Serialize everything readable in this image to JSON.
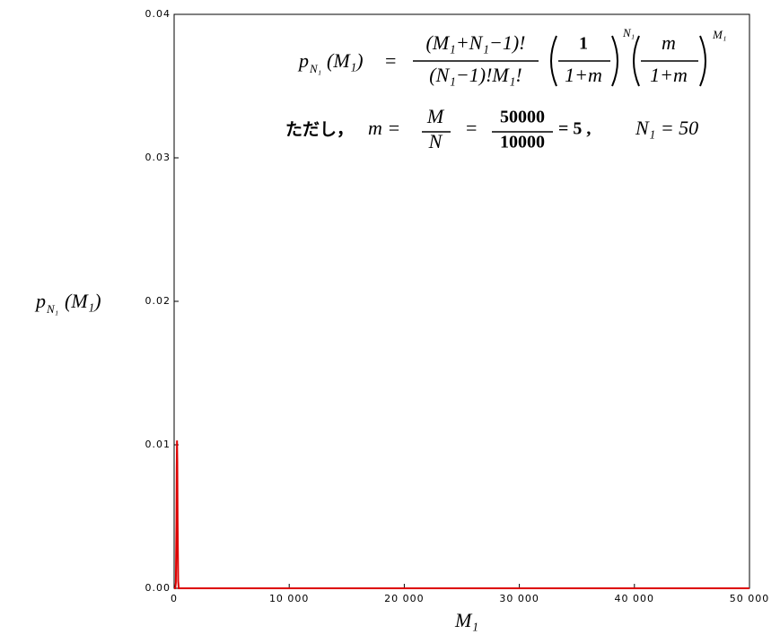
{
  "chart_data": {
    "type": "line",
    "x": [
      0,
      100,
      150,
      200,
      225,
      250,
      275,
      300,
      350,
      400,
      500,
      50000
    ],
    "series": [
      {
        "name": "p_N1(M1)",
        "color": "#dd0000",
        "values": [
          0,
          0,
          0.0004,
          0.0045,
          0.0084,
          0.0103,
          0.0088,
          0.0048,
          0.0005,
          0,
          0,
          0
        ]
      }
    ],
    "xlim": [
      0,
      50000
    ],
    "xticks": [
      0,
      {
        "value": 10000,
        "label": "10 000"
      },
      {
        "value": 20000,
        "label": "20 000"
      },
      {
        "value": 30000,
        "label": "30 000"
      },
      {
        "value": 40000,
        "label": "40 000"
      },
      {
        "value": 50000,
        "label": "50 000"
      }
    ],
    "ylim": [
      0,
      0.04
    ],
    "yticks": [
      {
        "value": 0,
        "label": "0.00"
      },
      {
        "value": 0.01,
        "label": "0.01"
      },
      {
        "value": 0.02,
        "label": "0.02"
      },
      {
        "value": 0.03,
        "label": "0.03"
      },
      {
        "value": 0.04,
        "label": "0.04"
      }
    ],
    "grid": false,
    "x_label": "M₁",
    "y_label": {
      "symbol": "p",
      "subscript": "N₁",
      "argument": "(M₁)"
    },
    "annotations": {
      "formula": {
        "symbol": "p",
        "subscript": "N₁",
        "argument": "(M₁)",
        "equals": "=",
        "numerator": "(M₁+N₁−1)!",
        "denominator": "(N₁−1)!M₁!",
        "frac2_num": "1",
        "frac2_den": "1+m",
        "frac2_exp": "N₁",
        "frac3_num": "m",
        "frac3_den": "1+m",
        "frac3_exp": "M₁"
      },
      "condition": {
        "prefix": "ただし，",
        "m_eq": "m =",
        "num1": "M",
        "den1": "N",
        "equals": "=",
        "num2": "50000",
        "den2": "10000",
        "result": "= 5 ,",
        "n1": "N₁ = 50"
      }
    }
  }
}
